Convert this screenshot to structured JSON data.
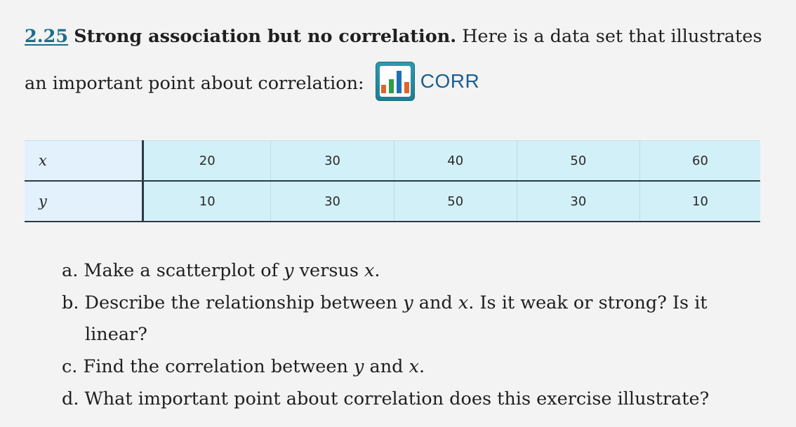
{
  "exercise": {
    "number": "2.25",
    "title": "Strong association but no correlation.",
    "intro_line": "Here is a data set that illustrates an important point about correlation:",
    "dataset_badge": {
      "label": "CORR",
      "icon": "bar-chart-icon",
      "colors": {
        "frame": "#1c7f93",
        "bars": [
          "#e0632a",
          "#2f9e44",
          "#1c6fb8",
          "#e0632a"
        ]
      }
    }
  },
  "table": {
    "rows": [
      {
        "variable": "x",
        "values": [
          "20",
          "30",
          "40",
          "50",
          "60"
        ]
      },
      {
        "variable": "y",
        "values": [
          "10",
          "30",
          "50",
          "30",
          "10"
        ]
      }
    ]
  },
  "questions": [
    {
      "letter": "a.",
      "parts": [
        "Make a scatterplot of ",
        "y",
        " versus ",
        "x",
        "."
      ]
    },
    {
      "letter": "b.",
      "parts": [
        "Describe the relationship between ",
        "y",
        " and ",
        "x",
        ". Is it weak or strong? Is it linear?"
      ]
    },
    {
      "letter": "c.",
      "parts": [
        "Find the correlation between ",
        "y",
        " and ",
        "x",
        "."
      ]
    },
    {
      "letter": "d.",
      "text": "What important point about correlation does this exercise illustrate?"
    }
  ]
}
